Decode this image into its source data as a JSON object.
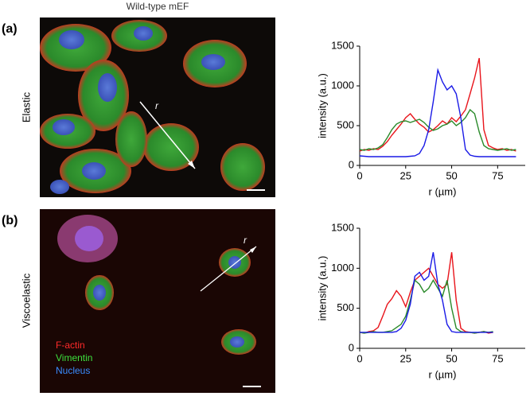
{
  "header": "Wild-type mEF",
  "panels": [
    {
      "label": "(a)",
      "condition": "Elastic",
      "arrow_label": "r"
    },
    {
      "label": "(b)",
      "condition": "Viscoelastic",
      "arrow_label": "r",
      "legend": [
        "F-actin",
        "Vimentin",
        "Nucleus"
      ]
    }
  ],
  "chart_data": [
    {
      "type": "line",
      "y_label": "intensity (a.u.)",
      "x_label": "r (µm)",
      "xlim": [
        0,
        90
      ],
      "ylim": [
        0,
        1500
      ],
      "xticks": [
        0,
        25,
        50,
        75
      ],
      "yticks": [
        0,
        500,
        1000,
        1500
      ],
      "x": [
        0,
        2.5,
        5,
        7.5,
        10,
        12.5,
        15,
        17.5,
        20,
        22.5,
        25,
        27.5,
        30,
        32.5,
        35,
        37.5,
        40,
        42.5,
        45,
        47.5,
        50,
        52.5,
        55,
        57.5,
        60,
        62.5,
        65,
        67.5,
        70,
        72.5,
        75,
        77.5,
        80,
        82.5,
        85
      ],
      "series": [
        {
          "color": "#e8141b",
          "values": [
            180,
            200,
            190,
            210,
            200,
            240,
            300,
            380,
            450,
            520,
            600,
            650,
            580,
            520,
            480,
            420,
            450,
            500,
            560,
            520,
            600,
            550,
            620,
            700,
            900,
            1100,
            1350,
            450,
            250,
            220,
            200,
            210,
            190,
            200,
            180
          ]
        },
        {
          "color": "#2a8a2a",
          "values": [
            200,
            190,
            210,
            200,
            220,
            260,
            350,
            450,
            520,
            550,
            560,
            540,
            560,
            580,
            540,
            480,
            440,
            460,
            500,
            520,
            560,
            500,
            540,
            600,
            700,
            650,
            420,
            250,
            210,
            200,
            190,
            200,
            210,
            190,
            200
          ]
        },
        {
          "color": "#1a1ae6",
          "values": [
            120,
            115,
            110,
            110,
            110,
            110,
            110,
            110,
            110,
            110,
            110,
            115,
            120,
            150,
            250,
            450,
            800,
            1200,
            1050,
            950,
            1000,
            900,
            600,
            200,
            130,
            115,
            110,
            110,
            110,
            110,
            110,
            110,
            110,
            110,
            110
          ]
        }
      ]
    },
    {
      "type": "line",
      "y_label": "intensity (a.u.)",
      "x_label": "r (µm)",
      "xlim": [
        0,
        90
      ],
      "ylim": [
        0,
        1500
      ],
      "xticks": [
        0,
        25,
        50,
        75
      ],
      "yticks": [
        0,
        500,
        1000,
        1500
      ],
      "x": [
        0,
        2.5,
        5,
        7.5,
        10,
        12.5,
        15,
        17.5,
        20,
        22.5,
        25,
        27.5,
        30,
        32.5,
        35,
        37.5,
        40,
        42.5,
        45,
        47.5,
        50,
        52.5,
        55,
        57.5,
        60,
        62.5,
        65,
        67.5,
        70,
        72.5
      ],
      "series": [
        {
          "color": "#e8141b",
          "values": [
            200,
            190,
            210,
            220,
            260,
            400,
            550,
            620,
            720,
            650,
            520,
            700,
            850,
            900,
            950,
            1000,
            900,
            800,
            750,
            800,
            1200,
            600,
            250,
            210,
            200,
            190,
            200,
            210,
            190,
            200
          ]
        },
        {
          "color": "#2a8a2a",
          "values": [
            200,
            190,
            200,
            210,
            200,
            200,
            210,
            220,
            260,
            300,
            400,
            600,
            850,
            800,
            700,
            750,
            850,
            750,
            650,
            850,
            500,
            250,
            210,
            200,
            200,
            190,
            200,
            210,
            200,
            210
          ]
        },
        {
          "color": "#1a1ae6",
          "values": [
            200,
            200,
            200,
            200,
            200,
            200,
            200,
            200,
            210,
            250,
            350,
            550,
            900,
            950,
            850,
            900,
            1200,
            800,
            600,
            300,
            210,
            200,
            200,
            200,
            200,
            200,
            200,
            200,
            200,
            200
          ]
        }
      ]
    }
  ]
}
